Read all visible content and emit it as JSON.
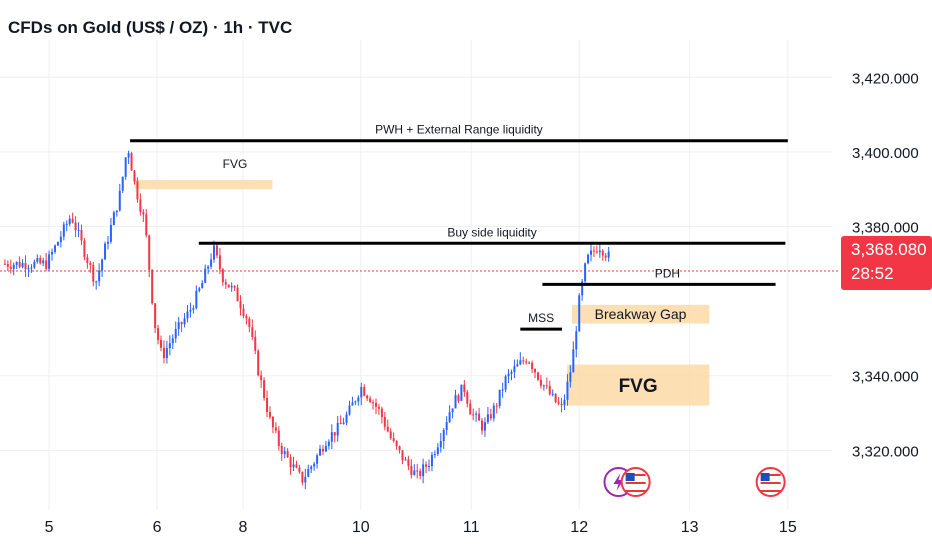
{
  "header": {
    "title": "CFDs on Gold (US$ / OZ) · 1h · TVC"
  },
  "price_tag": {
    "price": "3,368.080",
    "countdown": "28:52"
  },
  "colors": {
    "up": "#2962ff",
    "down": "#f23645",
    "level_line": "#000000",
    "fvg_fill": "#fbd9a6",
    "current_price_line": "#f23645",
    "text": "#131722",
    "grid": "#eef0f3"
  },
  "chart_data": {
    "type": "candlestick",
    "ylim": [
      3304,
      3430
    ],
    "y_ticks": [
      {
        "value": 3420,
        "label": "3,420.000"
      },
      {
        "value": 3400,
        "label": "3,400.000"
      },
      {
        "value": 3380,
        "label": "3,380.000"
      },
      {
        "value": 3340,
        "label": "3,340.000"
      },
      {
        "value": 3320,
        "label": "3,320.000"
      }
    ],
    "x_ticks": [
      {
        "label": "5",
        "pos": 0.1
      },
      {
        "label": "6",
        "pos": 4.5
      },
      {
        "label": "8",
        "pos": 8.0
      },
      {
        "label": "10",
        "pos": 12.8
      },
      {
        "label": "11",
        "pos": 17.3
      },
      {
        "label": "12",
        "pos": 21.7
      },
      {
        "label": "13",
        "pos": 26.2
      },
      {
        "label": "15",
        "pos": 30.2
      }
    ],
    "x_range": [
      -1.9,
      32.0
    ],
    "current_price": 3368.08,
    "ohlc_anchors": [
      [
        0,
        3370
      ],
      [
        1,
        3383
      ],
      [
        2,
        3365
      ],
      [
        3,
        3389
      ],
      [
        3.3,
        3402
      ],
      [
        3.6,
        3391
      ],
      [
        4,
        3381
      ],
      [
        4.4,
        3354
      ],
      [
        4.7,
        3345
      ],
      [
        5.2,
        3351
      ],
      [
        5.8,
        3357
      ],
      [
        6.3,
        3364
      ],
      [
        6.8,
        3374
      ],
      [
        7.2,
        3366
      ],
      [
        7.7,
        3362
      ],
      [
        8.2,
        3355
      ],
      [
        8.6,
        3342
      ],
      [
        9.1,
        3328
      ],
      [
        9.5,
        3321
      ],
      [
        10.0,
        3316
      ],
      [
        10.4,
        3312
      ],
      [
        10.9,
        3317
      ],
      [
        11.4,
        3323
      ],
      [
        11.9,
        3326
      ],
      [
        12.3,
        3330
      ],
      [
        12.8,
        3337
      ],
      [
        13.2,
        3334
      ],
      [
        13.6,
        3330
      ],
      [
        14.1,
        3322
      ],
      [
        14.6,
        3317
      ],
      [
        15.1,
        3313
      ],
      [
        15.6,
        3317
      ],
      [
        16.0,
        3323
      ],
      [
        16.5,
        3332
      ],
      [
        17.0,
        3337
      ],
      [
        17.3,
        3330
      ],
      [
        17.8,
        3326
      ],
      [
        18.3,
        3332
      ],
      [
        18.7,
        3339
      ],
      [
        19.1,
        3342
      ],
      [
        19.6,
        3345
      ],
      [
        20.1,
        3339
      ],
      [
        20.6,
        3334
      ],
      [
        21.0,
        3331
      ],
      [
        21.4,
        3343
      ],
      [
        21.7,
        3360
      ],
      [
        22.0,
        3371
      ],
      [
        22.5,
        3375
      ],
      [
        22.9,
        3372
      ]
    ],
    "annotations": {
      "lines": [
        {
          "label": "PWH + External Range liquidity",
          "x1": 3.4,
          "x2": 30.2,
          "y": 3403
        },
        {
          "label": "Buy side liquidity",
          "x1": 6.2,
          "x2": 30.1,
          "y": 3375.5
        },
        {
          "label": "PDH",
          "x1": 20.2,
          "x2": 29.7,
          "y": 3364.5
        },
        {
          "label": "MSS",
          "x1": 19.3,
          "x2": 21.0,
          "y": 3352.5
        }
      ],
      "zones": [
        {
          "label": "FVG",
          "x1": 3.6,
          "x2": 9.2,
          "y1": 3390,
          "y2": 3392.5
        },
        {
          "label": "Breakway Gap",
          "x1": 21.4,
          "x2": 27.0,
          "y1": 3354,
          "y2": 3359
        },
        {
          "label": "FVG",
          "x1": 21.2,
          "x2": 27.0,
          "y1": 3332,
          "y2": 3343
        }
      ]
    },
    "events": [
      {
        "icon": "lightning-icon",
        "x": 23.3
      },
      {
        "icon": "us-flag-icon",
        "x": 24.0
      },
      {
        "icon": "us-flag-icon",
        "x": 29.5
      }
    ]
  }
}
